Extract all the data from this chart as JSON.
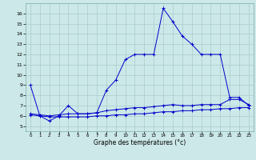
{
  "xlabel": "Graphe des températures (°c)",
  "x_ticks": [
    0,
    1,
    2,
    3,
    4,
    5,
    6,
    7,
    8,
    9,
    10,
    11,
    12,
    13,
    14,
    15,
    16,
    17,
    18,
    19,
    20,
    21,
    22,
    23
  ],
  "ylim": [
    4.5,
    17.0
  ],
  "xlim": [
    -0.5,
    23.5
  ],
  "yticks": [
    5,
    6,
    7,
    8,
    9,
    10,
    11,
    12,
    13,
    14,
    15,
    16
  ],
  "bg_color": "#cce8e8",
  "grid_color": "#aacccc",
  "line_color": "#0000cc",
  "line1": {
    "x": [
      0,
      1,
      2,
      3,
      4,
      5,
      6,
      7,
      8,
      9,
      10,
      11,
      12,
      13,
      14,
      15,
      16,
      17,
      18,
      19,
      20,
      21,
      22,
      23
    ],
    "y": [
      9.0,
      6.0,
      5.5,
      6.0,
      7.0,
      6.2,
      6.2,
      6.3,
      8.5,
      9.5,
      11.5,
      12.0,
      12.0,
      12.0,
      16.5,
      15.2,
      13.8,
      13.0,
      12.0,
      12.0,
      12.0,
      7.8,
      7.8,
      7.0
    ]
  },
  "line2": {
    "x": [
      0,
      1,
      2,
      3,
      4,
      5,
      6,
      7,
      8,
      9,
      10,
      11,
      12,
      13,
      14,
      15,
      16,
      17,
      18,
      19,
      20,
      21,
      22,
      23
    ],
    "y": [
      6.2,
      6.1,
      6.0,
      6.1,
      6.2,
      6.2,
      6.2,
      6.3,
      6.5,
      6.6,
      6.7,
      6.8,
      6.8,
      6.9,
      7.0,
      7.1,
      7.0,
      7.0,
      7.1,
      7.1,
      7.1,
      7.6,
      7.6,
      7.1
    ]
  },
  "line3": {
    "x": [
      0,
      1,
      2,
      3,
      4,
      5,
      6,
      7,
      8,
      9,
      10,
      11,
      12,
      13,
      14,
      15,
      16,
      17,
      18,
      19,
      20,
      21,
      22,
      23
    ],
    "y": [
      6.1,
      6.0,
      5.9,
      5.9,
      5.9,
      5.9,
      5.9,
      6.0,
      6.0,
      6.1,
      6.1,
      6.2,
      6.2,
      6.3,
      6.4,
      6.4,
      6.5,
      6.5,
      6.6,
      6.6,
      6.7,
      6.7,
      6.8,
      6.8
    ]
  }
}
